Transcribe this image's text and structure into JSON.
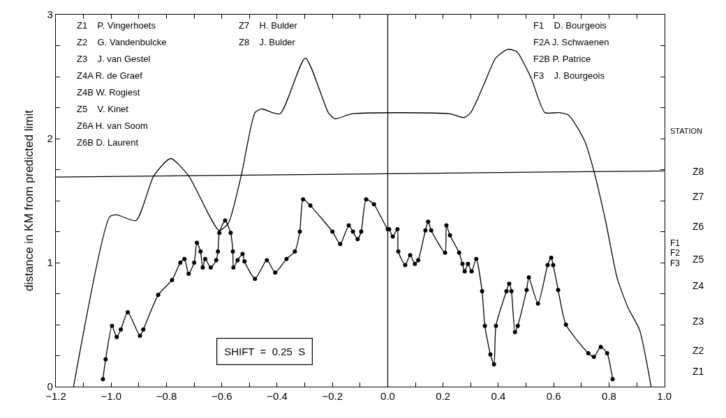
{
  "chart_data": {
    "type": "line",
    "ylabel": "distance in KM from predicted limit",
    "xlim": [
      -1.2,
      1.0
    ],
    "xticks": [
      {
        "value": -1.2,
        "label": "−1.2"
      },
      {
        "value": -1.1,
        "label": null
      },
      {
        "value": -1.0,
        "label": "−1.0"
      },
      {
        "value": -0.9,
        "label": null
      },
      {
        "value": -0.8,
        "label": "−0.8"
      },
      {
        "value": -0.7,
        "label": null
      },
      {
        "value": -0.6,
        "label": "−0.6"
      },
      {
        "value": -0.5,
        "label": null
      },
      {
        "value": -0.4,
        "label": "−0.4"
      },
      {
        "value": -0.3,
        "label": null
      },
      {
        "value": -0.2,
        "label": "−0.2"
      },
      {
        "value": -0.1,
        "label": null
      },
      {
        "value": 0.0,
        "label": "0.0"
      },
      {
        "value": 0.1,
        "label": null
      },
      {
        "value": 0.2,
        "label": "0.2"
      },
      {
        "value": 0.3,
        "label": null
      },
      {
        "value": 0.4,
        "label": "0.4"
      },
      {
        "value": 0.5,
        "label": null
      },
      {
        "value": 0.6,
        "label": "0.6"
      },
      {
        "value": 0.7,
        "label": null
      },
      {
        "value": 0.8,
        "label": "0.8"
      },
      {
        "value": 0.9,
        "label": null
      },
      {
        "value": 1.0,
        "label": "1.0"
      }
    ],
    "ylim": [
      0,
      3
    ],
    "yticks": [
      0,
      {
        "value": 0.25,
        "label": null
      },
      {
        "value": 0.5,
        "label": null
      },
      {
        "value": 0.75,
        "label": null
      },
      1,
      {
        "value": 1.25,
        "label": null
      },
      {
        "value": 1.5,
        "label": null
      },
      {
        "value": 1.75,
        "label": null
      },
      2,
      {
        "value": 2.25,
        "label": null
      },
      {
        "value": 2.5,
        "label": null
      },
      {
        "value": 2.75,
        "label": null
      },
      3
    ],
    "ref_lines": [
      {
        "axis": "x",
        "value": 0,
        "color": "#000000"
      }
    ],
    "series": [
      {
        "color": "#000000",
        "marker": "none",
        "x": [
          -1.136,
          -1.005,
          -0.98,
          -0.91,
          -0.846,
          -0.785,
          -0.72,
          -0.61,
          -0.576,
          -0.53,
          -0.48,
          -0.457,
          -0.39,
          -0.298,
          -0.215,
          -0.19,
          -0.13,
          0.225,
          0.275,
          0.3,
          0.35,
          0.39,
          0.434,
          0.467,
          0.518,
          0.568,
          0.619,
          0.654,
          0.712,
          0.745,
          0.788,
          0.83,
          0.87,
          0.91,
          0.952
        ],
        "values": [
          0,
          1.37,
          1.385,
          1.34,
          1.7,
          1.84,
          1.7,
          1.26,
          1.32,
          1.7,
          2.21,
          2.24,
          2.2,
          2.65,
          2.21,
          2.16,
          2.2,
          2.2,
          2.17,
          2.21,
          2.45,
          2.65,
          2.72,
          2.7,
          2.49,
          2.21,
          2.21,
          2.19,
          1.98,
          1.74,
          1.33,
          0.87,
          0.63,
          0.46,
          0
        ]
      },
      {
        "color": "#000000",
        "marker": "none",
        "x": [
          -1.2,
          1.0
        ],
        "values": [
          1.69,
          1.74
        ]
      },
      {
        "color": "#000000",
        "marker": "circle",
        "x": [
          -1.03,
          -1.02,
          -0.997,
          -0.98,
          -0.965,
          -0.94,
          -0.896,
          -0.884,
          -0.83,
          -0.78,
          -0.75,
          -0.735,
          -0.72,
          -0.7,
          -0.69,
          -0.677,
          -0.669,
          -0.66,
          -0.64,
          -0.62,
          -0.614,
          -0.609,
          -0.588,
          -0.568,
          -0.56,
          -0.558,
          -0.543,
          -0.525,
          -0.518,
          -0.48,
          -0.437,
          -0.407,
          -0.366,
          -0.336,
          -0.318,
          -0.306,
          -0.28,
          -0.2,
          -0.172,
          -0.141,
          -0.126,
          -0.109,
          -0.096,
          -0.078,
          -0.05,
          0.0,
          0.005,
          0.018,
          0.035,
          0.038,
          0.063,
          0.081,
          0.098,
          0.11,
          0.136,
          0.146,
          0.157,
          0.207,
          0.212,
          0.225,
          0.258,
          0.27,
          0.278,
          0.29,
          0.303,
          0.32,
          0.341,
          0.351,
          0.371,
          0.384,
          0.391,
          0.429,
          0.439,
          0.447,
          0.46,
          0.47,
          0.502,
          0.51,
          0.543,
          0.578,
          0.591,
          0.598,
          0.616,
          0.644,
          0.725,
          0.745,
          0.77,
          0.793,
          0.813
        ],
        "values": [
          0.06,
          0.22,
          0.49,
          0.4,
          0.46,
          0.6,
          0.41,
          0.46,
          0.74,
          0.86,
          1.0,
          1.03,
          0.91,
          1.0,
          1.16,
          1.09,
          0.96,
          1.03,
          0.96,
          1.02,
          1.09,
          1.24,
          1.34,
          1.24,
          1.09,
          0.96,
          1.02,
          1.07,
          1.01,
          0.87,
          1.02,
          0.92,
          1.03,
          1.09,
          1.25,
          1.51,
          1.46,
          1.25,
          1.15,
          1.3,
          1.25,
          1.19,
          1.25,
          1.51,
          1.47,
          1.27,
          1.27,
          1.21,
          1.27,
          1.09,
          0.98,
          1.06,
          0.99,
          1.02,
          1.26,
          1.33,
          1.26,
          1.08,
          1.3,
          1.22,
          1.08,
          0.99,
          0.93,
          0.99,
          0.93,
          1.03,
          0.77,
          0.49,
          0.26,
          0.18,
          0.49,
          0.77,
          0.83,
          0.77,
          0.44,
          0.49,
          0.78,
          0.88,
          0.67,
          0.98,
          1.04,
          0.98,
          0.78,
          0.5,
          0.27,
          0.24,
          0.32,
          0.27,
          0.06
        ]
      }
    ],
    "annotations": [
      "Z1    P. Vingerhoets",
      "Z2    G. Vandenbulcke",
      "Z3    J. van Gestel",
      "Z4A R. de Graef",
      "Z4B W. Rogiest",
      "Z5    V. Kinet",
      "Z6A H. van Soom",
      "Z6B D. Laurent",
      "Z7    H. Bulder",
      "Z8    J. Bulder",
      "F1    D. Bourgeois",
      "F2A J. Schwaenen",
      "F2B P. Patrice",
      "F3    J. Bourgeois",
      "SHIFT  =  0.25  S",
      "STATION",
      "Z8",
      "Z7",
      "Z6",
      "F1",
      "F2",
      "F3",
      "Z5",
      "Z4",
      "Z3",
      "Z2",
      "Z1"
    ]
  }
}
